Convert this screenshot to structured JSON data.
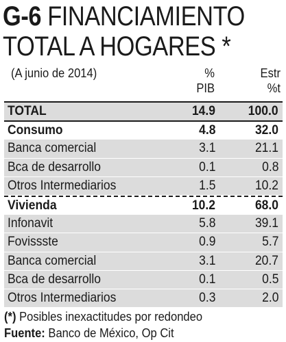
{
  "title": {
    "code": "G-6",
    "line1": " FINANCIAMIENTO",
    "line2": "TOTAL A HOGARES  *"
  },
  "header": {
    "subtitle": "(A junio de 2014)",
    "col1_line1": "%",
    "col1_line2": "PIB",
    "col2_line1": "Estr",
    "col2_line2": "%t"
  },
  "rows": [
    {
      "label": "TOTAL",
      "v1": "14.9",
      "v2": "100.0"
    },
    {
      "label": "Consumo",
      "v1": "4.8",
      "v2": "32.0"
    },
    {
      "label": "Banca comercial",
      "v1": "3.1",
      "v2": "21.1"
    },
    {
      "label": "Bca de desarrollo",
      "v1": "0.1",
      "v2": "0.8"
    },
    {
      "label": "Otros Intermediarios",
      "v1": "1.5",
      "v2": "10.2"
    },
    {
      "label": "Vivienda",
      "v1": "10.2",
      "v2": "68.0"
    },
    {
      "label": "Infonavit",
      "v1": "5.8",
      "v2": "39.1"
    },
    {
      "label": "Fovissste",
      "v1": "0.9",
      "v2": "5.7"
    },
    {
      "label": "Banca comercial",
      "v1": "3.1",
      "v2": "20.7"
    },
    {
      "label": "Bca de desarrollo",
      "v1": "0.1",
      "v2": "0.5"
    },
    {
      "label": "Otros Intermediarios",
      "v1": "0.3",
      "v2": "2.0"
    }
  ],
  "footer": {
    "note_mark": "(*)",
    "note_text": " Posibles inexactitudes por redondeo",
    "source_label": "Fuente:",
    "source_text": " Banco de México, Op Cit"
  }
}
